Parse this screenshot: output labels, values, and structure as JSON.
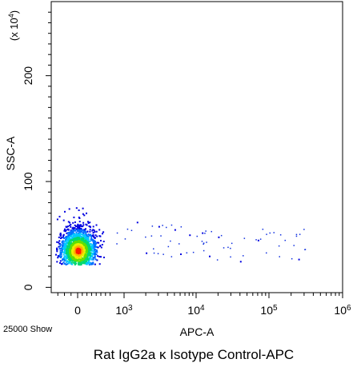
{
  "chart_data": {
    "type": "scatter",
    "title": "Rat IgG2a κ Isotype Control-APC",
    "xlabel": "APC-A",
    "ylabel": "SSC-A",
    "y_multiplier_label": "(x 10^4)",
    "event_count_label": "25000 Show",
    "x_scale": "biexponential",
    "x_ticks": [
      {
        "value": 0,
        "label": "0"
      },
      {
        "value": 1000,
        "label": "10^3"
      },
      {
        "value": 10000,
        "label": "10^4"
      },
      {
        "value": 100000,
        "label": "10^5"
      },
      {
        "value": 1000000,
        "label": "10^6"
      }
    ],
    "y_ticks": [
      0,
      100,
      200
    ],
    "ylim": [
      -5,
      270
    ],
    "grid": false,
    "colormap": "density (blue-cyan-green-yellow-red)",
    "main_cluster": {
      "x_center": 0,
      "y_center": 35,
      "y_range": [
        22,
        80
      ]
    },
    "sparse_events": [
      {
        "x": 1500,
        "y": 62
      },
      {
        "x": 3000,
        "y": 58
      },
      {
        "x": 5000,
        "y": 55
      },
      {
        "x": 8000,
        "y": 50
      },
      {
        "x": 12000,
        "y": 52
      },
      {
        "x": 20000,
        "y": 48
      },
      {
        "x": 40000,
        "y": 25
      },
      {
        "x": 70000,
        "y": 45
      },
      {
        "x": 250000,
        "y": 27
      },
      {
        "x": 2000,
        "y": 33
      },
      {
        "x": 6000,
        "y": 32
      },
      {
        "x": 15000,
        "y": 30
      }
    ]
  }
}
